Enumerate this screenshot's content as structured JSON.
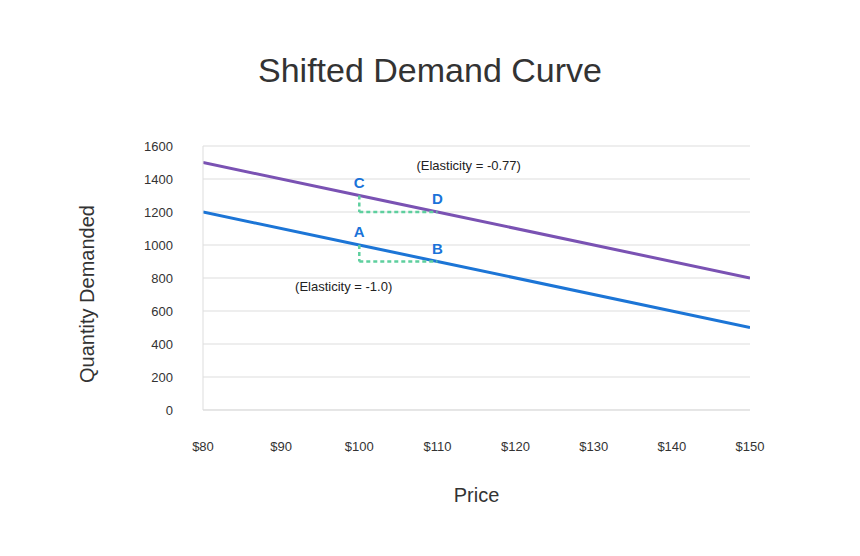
{
  "chart_data": {
    "type": "line",
    "title": "Shifted Demand Curve",
    "x_label": "Price",
    "y_label": "Quantity Demanded",
    "x": [
      80,
      100,
      110,
      150
    ],
    "series": [
      {
        "color": "#7a52b3",
        "values": [
          1500,
          1300,
          1200,
          800
        ]
      },
      {
        "color": "#1c75d6",
        "values": [
          1200,
          1000,
          900,
          500
        ]
      }
    ],
    "xlim": [
      80,
      150
    ],
    "xticks": [
      {
        "value": 80,
        "label": "$80"
      },
      {
        "value": 90,
        "label": "$90"
      },
      {
        "value": 100,
        "label": "$100"
      },
      {
        "value": 110,
        "label": "$110"
      },
      {
        "value": 120,
        "label": "$120"
      },
      {
        "value": 130,
        "label": "$130"
      },
      {
        "value": 140,
        "label": "$140"
      },
      {
        "value": 150,
        "label": "$150"
      }
    ],
    "ylim": [
      0,
      1600
    ],
    "yticks": [
      0,
      200,
      400,
      600,
      800,
      1000,
      1200,
      1400,
      1600
    ],
    "grid": true,
    "guides": [
      {
        "x": [
          100,
          100,
          110
        ],
        "y": [
          1300,
          1200,
          1200
        ],
        "color": "#5ecf9e",
        "line_style": "dashed"
      },
      {
        "x": [
          100,
          100,
          110
        ],
        "y": [
          1000,
          900,
          900
        ],
        "color": "#5ecf9e",
        "line_style": "dashed"
      }
    ],
    "annotations": [
      {
        "text": "C",
        "x": 100,
        "y": 1300,
        "color": "#1a73d9"
      },
      {
        "text": "D",
        "x": 110,
        "y": 1200,
        "color": "#1a73d9"
      },
      {
        "text": "A",
        "x": 100,
        "y": 1000,
        "color": "#1a73d9"
      },
      {
        "text": "B",
        "x": 110,
        "y": 900,
        "color": "#1a73d9"
      },
      {
        "text": "(Elasticity = -0.77)",
        "x": 114,
        "y": 1480
      },
      {
        "text": "(Elasticity = -1.0)",
        "x": 98,
        "y": 750
      }
    ]
  }
}
